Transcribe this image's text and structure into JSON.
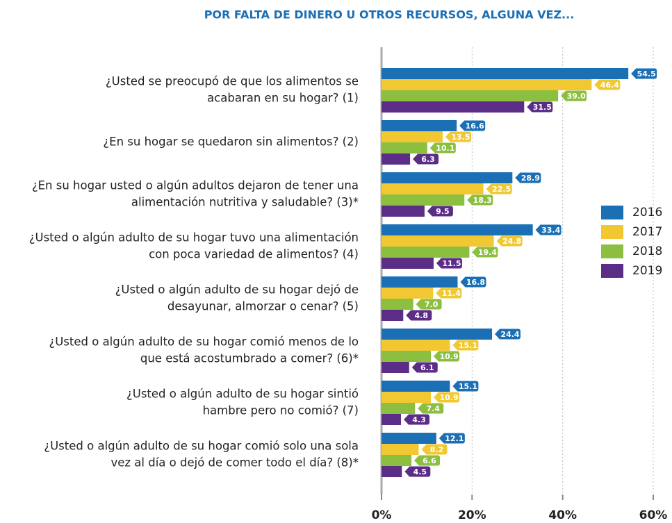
{
  "chart_data": {
    "type": "bar",
    "orientation": "horizontal",
    "title": "POR FALTA DE DINERO U OTROS RECURSOS, ALGUNA VEZ...",
    "categories": [
      [
        "¿Usted se preocupó de que los alimentos se",
        "acabaran en su hogar? (1)"
      ],
      [
        "¿En su hogar se quedaron sin alimentos? (2)"
      ],
      [
        "¿En su hogar usted o algún adultos dejaron de tener una",
        "alimentación nutritiva y saludable? (3)*"
      ],
      [
        "¿Usted o algún adulto de su hogar tuvo una alimentación",
        "con poca variedad de alimentos? (4)"
      ],
      [
        "¿Usted o algún adulto de su hogar dejó de",
        "desayunar, almorzar o cenar? (5)"
      ],
      [
        "¿Usted o algún adulto de su hogar comió menos de lo",
        "que está acostumbrado a comer? (6)*"
      ],
      [
        "¿Usted o algún adulto de su hogar sintió",
        "hambre pero no comió? (7)"
      ],
      [
        "¿Usted o algún adulto de su hogar comió solo una sola",
        "vez al día o dejó de comer todo el día? (8)*"
      ]
    ],
    "series": [
      {
        "name": "2016",
        "color": "#1a6fb5",
        "values": [
          54.5,
          16.6,
          28.9,
          33.4,
          16.8,
          24.4,
          15.1,
          12.1
        ],
        "value_labels": [
          "54.5",
          "16.6",
          "28.9",
          "33.4",
          "16.8",
          "24.4",
          "15.1",
          "12.1"
        ]
      },
      {
        "name": "2017",
        "color": "#f2c832",
        "values": [
          46.4,
          13.5,
          22.5,
          24.8,
          11.4,
          15.1,
          10.9,
          8.2
        ],
        "value_labels": [
          "46.4",
          "13.5",
          "22.5",
          "24.8",
          "11.4",
          "15.1",
          "10.9",
          "8.2"
        ]
      },
      {
        "name": "2018",
        "color": "#8cbf3f",
        "values": [
          39.0,
          10.1,
          18.3,
          19.4,
          7.0,
          10.9,
          7.4,
          6.6
        ],
        "value_labels": [
          "39.0",
          "10.1",
          "18.3",
          "19.4",
          "7.0",
          "10.9",
          "7.4",
          "6.6"
        ]
      },
      {
        "name": "2019",
        "color": "#5b2d86",
        "values": [
          31.5,
          6.3,
          9.5,
          11.5,
          4.8,
          6.1,
          4.3,
          4.5
        ],
        "value_labels": [
          "31.5",
          "6.3",
          "9.5",
          "11.5",
          "4.8",
          "6.1",
          "4.3",
          "4.5"
        ]
      }
    ],
    "xlim": [
      0,
      60
    ],
    "xticks": [
      {
        "value": 0,
        "label": "0%"
      },
      {
        "value": 20,
        "label": "20%"
      },
      {
        "value": 40,
        "label": "40%"
      },
      {
        "value": 60,
        "label": "60%"
      }
    ],
    "grid": true,
    "legend": "right"
  }
}
